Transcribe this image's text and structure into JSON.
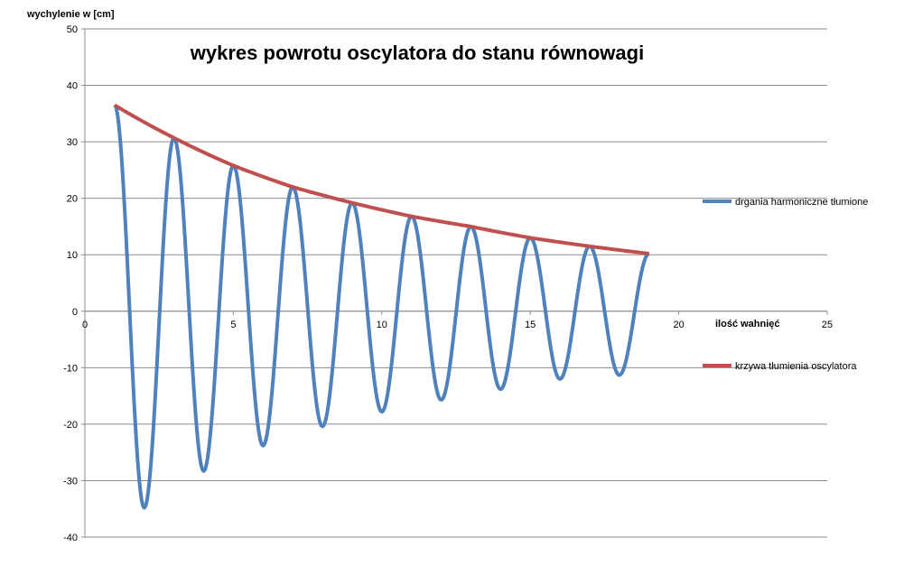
{
  "chart_data": {
    "type": "line",
    "title": "wykres powrotu oscylatora do stanu równowagi",
    "xlabel": "ilość wahnięć",
    "ylabel": "wychylenie w [cm]",
    "xlim": [
      0,
      25
    ],
    "ylim": [
      -40,
      50
    ],
    "x_ticks": [
      0,
      5,
      10,
      15,
      20,
      25
    ],
    "y_ticks": [
      -40,
      -30,
      -20,
      -10,
      0,
      10,
      20,
      30,
      40,
      50
    ],
    "grid": "horizontal",
    "legend_position": "right",
    "series": [
      {
        "name": "drgania harmoniczne tłumione",
        "color": "#4f81bd",
        "x": [
          1,
          2,
          3,
          4,
          5,
          6,
          7,
          8,
          9,
          10,
          11,
          12,
          13,
          14,
          15,
          16,
          17,
          18,
          19
        ],
        "values": [
          36.5,
          -34.8,
          30.7,
          -28.3,
          25.8,
          -23.8,
          22.0,
          -20.4,
          19.2,
          -17.8,
          16.8,
          -15.7,
          15.0,
          -13.8,
          13.0,
          -12.0,
          11.5,
          -11.3,
          10.2
        ]
      },
      {
        "name": "krzywa tłumienia oscylatora",
        "color": "#c0504d",
        "x": [
          1,
          3,
          5,
          7,
          9,
          11,
          13,
          15,
          17,
          19
        ],
        "values": [
          36.5,
          30.7,
          25.8,
          22.0,
          19.2,
          16.8,
          15.0,
          13.0,
          11.5,
          10.2
        ]
      }
    ]
  }
}
